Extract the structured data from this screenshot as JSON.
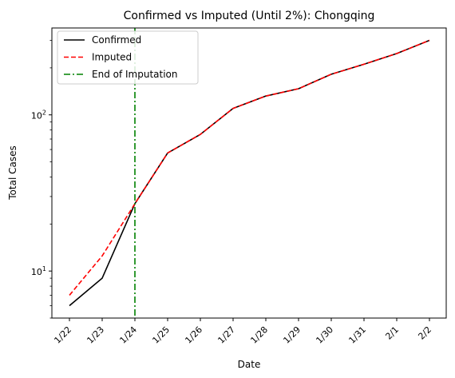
{
  "chart_data": {
    "type": "line",
    "title": "Confirmed vs Imputed (Until 2%): Chongqing",
    "xlabel": "Date",
    "ylabel": "Total Cases",
    "yscale": "log",
    "ylim": [
      5,
      360
    ],
    "categories": [
      "1/22",
      "1/23",
      "1/24",
      "1/25",
      "1/26",
      "1/27",
      "1/28",
      "1/29",
      "1/30",
      "1/31",
      "2/1",
      "2/2"
    ],
    "y_tick_labels": [
      {
        "value": 10,
        "label": "10",
        "exp": "1"
      },
      {
        "value": 100,
        "label": "10",
        "exp": "2"
      }
    ],
    "series": [
      {
        "name": "Confirmed",
        "color": "#000000",
        "style": "solid",
        "values": [
          6,
          9,
          27,
          57,
          75,
          110,
          132,
          147,
          182,
          211,
          247,
          300
        ]
      },
      {
        "name": "Imputed",
        "color": "#ff0000",
        "style": "dashed",
        "values": [
          7,
          12.5,
          27,
          57,
          75,
          110,
          132,
          147,
          182,
          211,
          247,
          300
        ]
      }
    ],
    "vline": {
      "name": "End of Imputation",
      "x": "1/24",
      "color": "#008000",
      "style": "dashdot"
    },
    "legend": {
      "position": "top-left"
    },
    "grid": false
  }
}
